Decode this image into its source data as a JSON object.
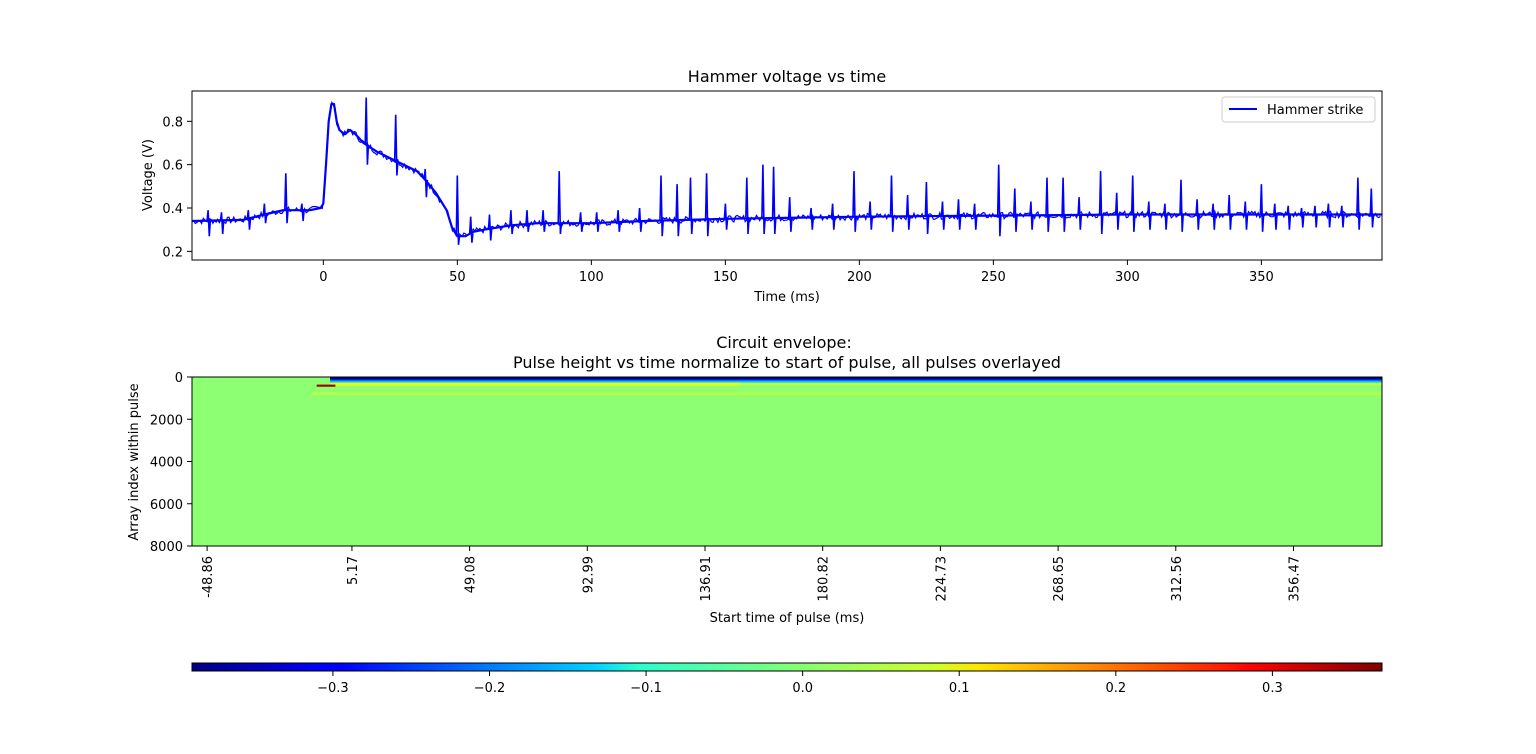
{
  "chart_data": [
    {
      "type": "line",
      "title": "Hammer voltage vs time",
      "xlabel": "Time (ms)",
      "ylabel": "Voltage (V)",
      "xlim": [
        -49,
        395
      ],
      "ylim": [
        0.16,
        0.94
      ],
      "xticks": [
        "0",
        "50",
        "100",
        "150",
        "200",
        "250",
        "300",
        "350"
      ],
      "xtick_values": [
        0,
        50,
        100,
        150,
        200,
        250,
        300,
        350
      ],
      "yticks": [
        "0.2",
        "0.4",
        "0.6",
        "0.8"
      ],
      "ytick_values": [
        0.2,
        0.4,
        0.6,
        0.8
      ],
      "grid": false,
      "legend": {
        "placement": "top-right",
        "entries": [
          "Hammer strike"
        ]
      },
      "series": [
        {
          "name": "Hammer strike",
          "color": "#0000ff",
          "baseline": [
            [
              -49,
              0.34
            ],
            [
              -30,
              0.345
            ],
            [
              -22,
              0.37
            ],
            [
              -15,
              0.39
            ],
            [
              -5,
              0.39
            ],
            [
              -1,
              0.4
            ],
            [
              0,
              0.42
            ],
            [
              1,
              0.6
            ],
            [
              2,
              0.8
            ],
            [
              3,
              0.88
            ],
            [
              4,
              0.88
            ],
            [
              5,
              0.8
            ],
            [
              6,
              0.76
            ],
            [
              8,
              0.74
            ],
            [
              10,
              0.76
            ],
            [
              12,
              0.74
            ],
            [
              15,
              0.7
            ],
            [
              20,
              0.66
            ],
            [
              25,
              0.63
            ],
            [
              30,
              0.6
            ],
            [
              35,
              0.57
            ],
            [
              38,
              0.53
            ],
            [
              42,
              0.47
            ],
            [
              46,
              0.39
            ],
            [
              48,
              0.31
            ],
            [
              50,
              0.27
            ],
            [
              53,
              0.27
            ],
            [
              56,
              0.29
            ],
            [
              60,
              0.3
            ],
            [
              70,
              0.32
            ],
            [
              80,
              0.33
            ],
            [
              100,
              0.33
            ],
            [
              120,
              0.34
            ],
            [
              150,
              0.35
            ],
            [
              200,
              0.36
            ],
            [
              250,
              0.365
            ],
            [
              300,
              0.37
            ],
            [
              350,
              0.37
            ],
            [
              395,
              0.37
            ]
          ],
          "spikes": [
            [
              -43,
              0.39,
              0.27
            ],
            [
              -38,
              0.38,
              0.28
            ],
            [
              -28,
              0.39,
              0.3
            ],
            [
              -22,
              0.42,
              0.33
            ],
            [
              -14,
              0.56,
              0.33
            ],
            [
              -8,
              0.42,
              0.34
            ],
            [
              16,
              0.91,
              0.6
            ],
            [
              27,
              0.83,
              0.55
            ],
            [
              38,
              0.58,
              0.45
            ],
            [
              50,
              0.55,
              0.23
            ],
            [
              55,
              0.36,
              0.24
            ],
            [
              62,
              0.37,
              0.25
            ],
            [
              70,
              0.39,
              0.28
            ],
            [
              76,
              0.39,
              0.29
            ],
            [
              82,
              0.39,
              0.29
            ],
            [
              88,
              0.57,
              0.28
            ],
            [
              96,
              0.38,
              0.29
            ],
            [
              102,
              0.38,
              0.29
            ],
            [
              110,
              0.39,
              0.29
            ],
            [
              118,
              0.4,
              0.29
            ],
            [
              126,
              0.55,
              0.27
            ],
            [
              132,
              0.51,
              0.27
            ],
            [
              137,
              0.54,
              0.28
            ],
            [
              143,
              0.56,
              0.27
            ],
            [
              150,
              0.42,
              0.3
            ],
            [
              158,
              0.54,
              0.28
            ],
            [
              164,
              0.6,
              0.28
            ],
            [
              168,
              0.59,
              0.28
            ],
            [
              174,
              0.45,
              0.29
            ],
            [
              182,
              0.4,
              0.3
            ],
            [
              190,
              0.42,
              0.3
            ],
            [
              198,
              0.57,
              0.29
            ],
            [
              204,
              0.43,
              0.3
            ],
            [
              212,
              0.55,
              0.29
            ],
            [
              218,
              0.46,
              0.3
            ],
            [
              225,
              0.52,
              0.28
            ],
            [
              231,
              0.43,
              0.3
            ],
            [
              237,
              0.44,
              0.3
            ],
            [
              243,
              0.42,
              0.3
            ],
            [
              252,
              0.6,
              0.27
            ],
            [
              258,
              0.49,
              0.29
            ],
            [
              264,
              0.43,
              0.3
            ],
            [
              270,
              0.54,
              0.29
            ],
            [
              276,
              0.54,
              0.29
            ],
            [
              282,
              0.45,
              0.3
            ],
            [
              290,
              0.57,
              0.28
            ],
            [
              296,
              0.47,
              0.3
            ],
            [
              302,
              0.55,
              0.29
            ],
            [
              308,
              0.43,
              0.3
            ],
            [
              314,
              0.42,
              0.3
            ],
            [
              320,
              0.53,
              0.29
            ],
            [
              326,
              0.44,
              0.3
            ],
            [
              332,
              0.42,
              0.3
            ],
            [
              338,
              0.46,
              0.3
            ],
            [
              344,
              0.43,
              0.3
            ],
            [
              350,
              0.51,
              0.29
            ],
            [
              355,
              0.42,
              0.3
            ],
            [
              360,
              0.41,
              0.3
            ],
            [
              365,
              0.4,
              0.31
            ],
            [
              370,
              0.41,
              0.31
            ],
            [
              375,
              0.42,
              0.31
            ],
            [
              380,
              0.41,
              0.31
            ],
            [
              386,
              0.54,
              0.3
            ],
            [
              391,
              0.49,
              0.31
            ]
          ]
        }
      ]
    },
    {
      "type": "heatmap",
      "title_line1": "Circuit envelope:",
      "title_line2": "Pulse height vs time normalize to start of pulse, all pulses overlayed",
      "xlabel": "Start time of pulse (ms)",
      "ylabel": "Array index within pulse",
      "xlim": [
        -54.5,
        389.5
      ],
      "ylim": [
        8000,
        0
      ],
      "xticks": [
        "-48.86",
        "5.17",
        "49.08",
        "92.99",
        "136.91",
        "180.82",
        "224.73",
        "268.65",
        "312.56",
        "356.47"
      ],
      "xtick_values": [
        -48.86,
        5.17,
        49.08,
        92.99,
        136.91,
        180.82,
        224.73,
        268.65,
        312.56,
        356.47
      ],
      "yticks": [
        "0",
        "2000",
        "4000",
        "6000",
        "8000"
      ],
      "ytick_values": [
        0,
        2000,
        4000,
        6000,
        8000
      ],
      "background_value": 0.0,
      "features": [
        {
          "desc_value": -0.38,
          "x_range": [
            -3,
            389.5
          ],
          "y_range": [
            0,
            120
          ]
        },
        {
          "desc_value": -0.25,
          "x_range": [
            -3,
            389.5
          ],
          "y_range": [
            120,
            180
          ]
        },
        {
          "desc_value": -0.15,
          "x_range": [
            -3,
            389.5
          ],
          "y_range": [
            180,
            260
          ]
        },
        {
          "desc_value": 0.06,
          "x_range": [
            -3,
            150
          ],
          "y_range": [
            260,
            420
          ]
        },
        {
          "desc_value": 0.04,
          "x_range": [
            150,
            389.5
          ],
          "y_range": [
            300,
            400
          ]
        },
        {
          "desc_value": 0.03,
          "x_range": [
            -10,
            389.5
          ],
          "y_range": [
            700,
            850
          ]
        },
        {
          "desc_value": 0.35,
          "x_range": [
            -8,
            -1
          ],
          "y_range": [
            360,
            460
          ]
        }
      ],
      "colorbar": {
        "cmap": "jet",
        "vmin": -0.39,
        "vmax": 0.37,
        "ticks": [
          "−0.3",
          "−0.2",
          "−0.1",
          "0.0",
          "0.1",
          "0.2",
          "0.3"
        ],
        "tick_values": [
          -0.3,
          -0.2,
          -0.1,
          0.0,
          0.1,
          0.2,
          0.3
        ]
      }
    }
  ]
}
